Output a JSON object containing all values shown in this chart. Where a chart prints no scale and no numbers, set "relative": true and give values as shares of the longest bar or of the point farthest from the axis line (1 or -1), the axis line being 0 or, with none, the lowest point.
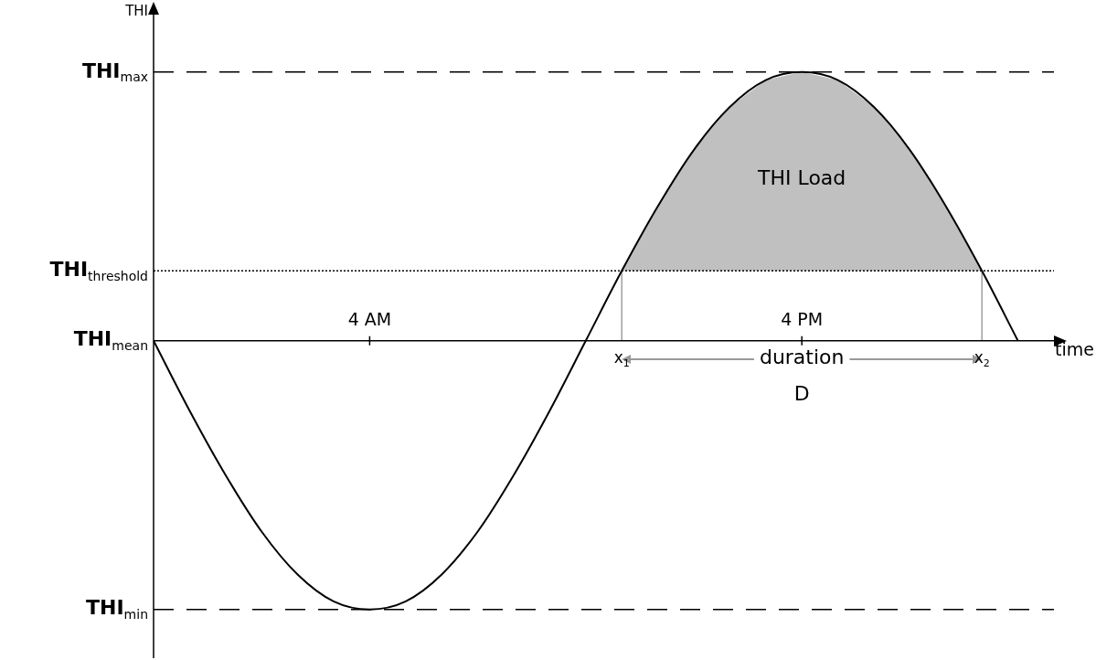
{
  "chart_data": {
    "type": "line",
    "relative": true,
    "xlabel": "time",
    "ylabel": "THI",
    "categories": [
      null,
      null,
      null,
      null,
      null,
      null,
      "4 AM",
      null,
      null,
      null,
      null,
      null,
      null,
      "x$_{1}$",
      null,
      null,
      null,
      null,
      "4 PM",
      null,
      null,
      null,
      null,
      "x$_{2}$",
      null
    ],
    "series": [
      {
        "color": "#000000",
        "values": [
          0,
          -0.26,
          -0.5,
          -0.71,
          -0.87,
          -0.97,
          -1,
          -0.97,
          -0.87,
          -0.71,
          -0.5,
          -0.26,
          0,
          0.26,
          0.5,
          0.71,
          0.87,
          0.97,
          1,
          0.97,
          0.87,
          0.71,
          0.5,
          0.26,
          0
        ]
      },
      {
        "type": "area",
        "color": "#c0c0c0",
        "values": [
          null,
          null,
          null,
          null,
          null,
          null,
          null,
          null,
          null,
          null,
          null,
          null,
          null,
          0.26,
          0.5,
          0.71,
          0.87,
          0.97,
          1,
          0.97,
          0.87,
          0.71,
          0.5,
          0.26,
          null
        ]
      }
    ],
    "ref_lines": [
      {
        "axis": "y",
        "value": 1,
        "label": "THI$_{max}$",
        "line_style": "dashed",
        "color": "#000000"
      },
      {
        "axis": "y",
        "value": 0.26,
        "label": "THI$_{threshold}$",
        "line_style": "dotted",
        "color": "#000000"
      },
      {
        "axis": "y",
        "value": -1,
        "label": "THI$_{min}$",
        "line_style": "dashed",
        "color": "#000000"
      },
      {
        "axis": "x",
        "value": "x$_{1}$",
        "color": "#a0a0a0"
      },
      {
        "axis": "x",
        "value": "x$_{2}$",
        "color": "#a0a0a0"
      }
    ],
    "annotations": [
      "THI Load",
      "duration",
      "D",
      "THI$_{mean}$"
    ],
    "legend": false,
    "marker": "none",
    "line_style": "solid"
  }
}
